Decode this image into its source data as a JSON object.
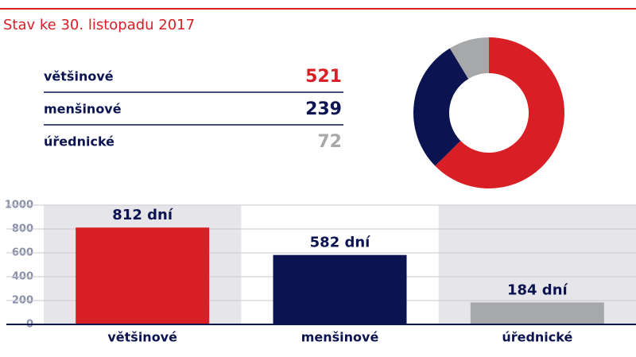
{
  "chart_data": [
    {
      "type": "donut",
      "title": "Stav ke 30. listopadu 2017",
      "categories": [
        "většinové",
        "menšinové",
        "úřednické"
      ],
      "values": [
        521,
        239,
        72
      ],
      "colors": [
        "#d91f26",
        "#0b1450",
        "#a7a8aa"
      ]
    },
    {
      "type": "bar",
      "categories": [
        "většinové",
        "menšinové",
        "úřednické"
      ],
      "values": [
        812,
        582,
        184
      ],
      "value_labels": [
        "812 dní",
        "582 dní",
        "184 dní"
      ],
      "colors": [
        "#d91f26",
        "#0b1450",
        "#a7a8aa"
      ],
      "ylim": [
        0,
        1000
      ],
      "yticks": [
        0,
        200,
        400,
        600,
        800,
        1000
      ],
      "grid": true
    }
  ]
}
